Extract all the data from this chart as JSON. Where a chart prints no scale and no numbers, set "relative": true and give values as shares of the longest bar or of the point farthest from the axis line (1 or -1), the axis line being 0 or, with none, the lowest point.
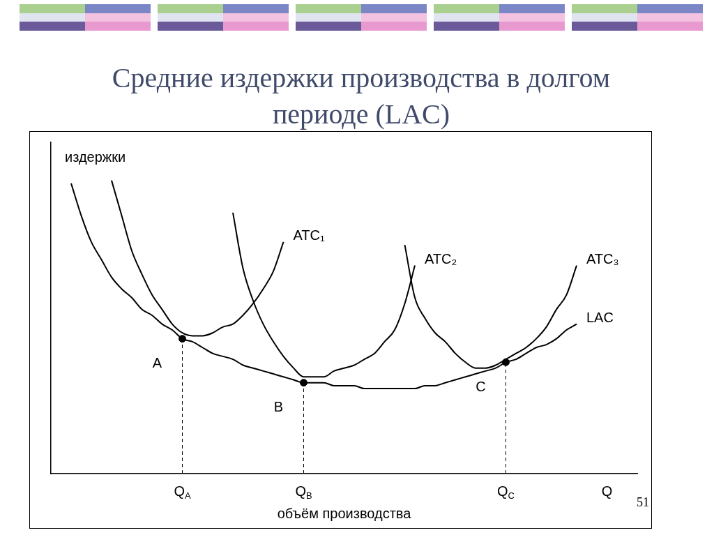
{
  "chart_data": {
    "type": "line",
    "title": "Средние издержки производства в долгом периоде (LAC)",
    "xlabel": "объём производства",
    "ylabel": "издержки",
    "relative": true,
    "legend": false,
    "grid": false,
    "marker": "none",
    "categories": [
      null,
      null,
      null,
      null,
      null,
      null,
      null,
      null,
      null,
      null,
      null,
      null,
      null,
      "Q$_{A}$",
      null,
      null,
      null,
      null,
      null,
      null,
      null,
      null,
      null,
      null,
      null,
      "Q$_{B}$",
      null,
      null,
      null,
      null,
      null,
      null,
      null,
      null,
      null,
      null,
      null,
      null,
      null,
      null,
      null,
      null,
      null,
      null,
      null,
      "Q$_{C}$",
      null,
      null,
      null,
      null,
      null,
      null,
      null,
      null,
      null,
      "Q",
      null,
      null,
      null
    ],
    "series": [
      {
        "name": "LAC",
        "color": "#000000",
        "values": [
          null,
          null,
          0.99,
          0.88,
          0.79,
          0.73,
          0.67,
          0.63,
          0.6,
          0.56,
          0.54,
          0.51,
          0.49,
          0.46,
          0.45,
          0.43,
          0.41,
          0.4,
          0.39,
          0.37,
          0.36,
          0.35,
          0.34,
          0.33,
          0.32,
          0.31,
          0.31,
          0.31,
          0.3,
          0.3,
          0.3,
          0.29,
          0.29,
          0.29,
          0.29,
          0.29,
          0.29,
          0.3,
          0.3,
          0.31,
          0.32,
          0.33,
          0.34,
          0.35,
          0.36,
          0.38,
          0.39,
          0.41,
          0.43,
          0.44,
          0.46,
          0.49,
          0.51,
          null,
          null,
          null,
          null,
          null,
          null
        ]
      },
      {
        "name": "ATC₁",
        "color": "#000000",
        "values": [
          null,
          null,
          null,
          null,
          null,
          null,
          1.0,
          0.88,
          0.76,
          0.68,
          0.61,
          0.56,
          0.51,
          0.48,
          0.47,
          0.47,
          0.48,
          0.5,
          0.51,
          0.54,
          0.58,
          0.63,
          0.69,
          0.79,
          null,
          null,
          null,
          null,
          null,
          null,
          null,
          null,
          null,
          null,
          null,
          null,
          null,
          null,
          null,
          null,
          null,
          null,
          null,
          null,
          null,
          null,
          null,
          null,
          null,
          null,
          null,
          null,
          null,
          null,
          null,
          null,
          null,
          null,
          null
        ]
      },
      {
        "name": "ATC₂",
        "color": "#000000",
        "values": [
          null,
          null,
          null,
          null,
          null,
          null,
          null,
          null,
          null,
          null,
          null,
          null,
          null,
          null,
          null,
          null,
          null,
          null,
          0.89,
          0.7,
          0.59,
          0.51,
          0.45,
          0.4,
          0.36,
          0.33,
          0.33,
          0.33,
          0.35,
          0.36,
          0.37,
          0.39,
          0.41,
          0.45,
          0.49,
          0.58,
          0.71,
          null,
          null,
          null,
          null,
          null,
          null,
          null,
          null,
          null,
          null,
          null,
          null,
          null,
          null,
          null,
          null,
          null,
          null,
          null,
          null,
          null,
          null
        ]
      },
      {
        "name": "ATC₃",
        "color": "#000000",
        "values": [
          null,
          null,
          null,
          null,
          null,
          null,
          null,
          null,
          null,
          null,
          null,
          null,
          null,
          null,
          null,
          null,
          null,
          null,
          null,
          null,
          null,
          null,
          null,
          null,
          null,
          null,
          null,
          null,
          null,
          null,
          null,
          null,
          null,
          null,
          null,
          0.78,
          0.6,
          0.53,
          0.48,
          0.45,
          0.41,
          0.38,
          0.36,
          0.36,
          0.37,
          0.39,
          0.41,
          0.43,
          0.46,
          0.5,
          0.56,
          0.61,
          0.71,
          null,
          null,
          null,
          null,
          null,
          null
        ]
      },
      {
        "type": "lollipop",
        "marker": "circle",
        "line_style": "dashed",
        "color": "#000000",
        "x": [
          "Q$_{A}$",
          "Q$_{B}$",
          "Q$_{C}$"
        ],
        "values": [
          0.46,
          0.31,
          0.38
        ]
      }
    ],
    "annotations": [
      {
        "text": "A",
        "x": "Q$_{A}$",
        "y": 0.46
      },
      {
        "text": "B",
        "x": "Q$_{B}$",
        "y": 0.31
      },
      {
        "text": "C",
        "x": "Q$_{C}$",
        "y": 0.38
      },
      "51"
    ]
  }
}
